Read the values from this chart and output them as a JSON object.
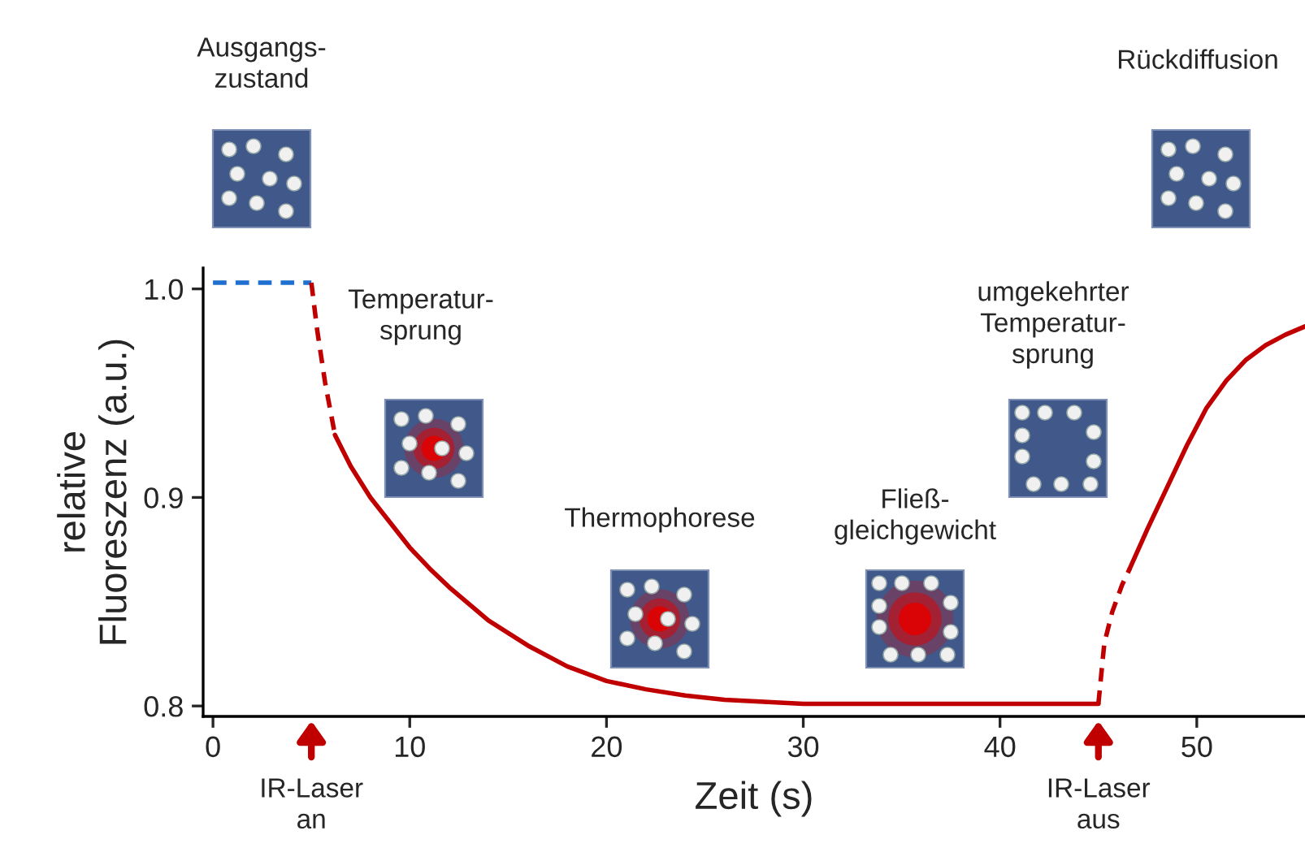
{
  "chart_data": {
    "type": "line",
    "xlabel": "Zeit (s)",
    "ylabel": "relative\nFluoreszenz (a.u.)",
    "xlim": [
      -0.5,
      55.5
    ],
    "ylim": [
      0.795,
      1.01
    ],
    "xticks": [
      0,
      10,
      20,
      30,
      40,
      50
    ],
    "yticks": [
      0.8,
      0.9,
      {
        "value": 1.0,
        "label": "1.0"
      }
    ],
    "grid": false,
    "legend": false,
    "series": [
      {
        "color": "#1f6fd0",
        "line_style": "dashed",
        "x": [
          0,
          5
        ],
        "values": [
          1.003,
          1.003
        ]
      },
      {
        "color": "#c00000",
        "line_style": "dashed",
        "x": [
          5,
          5.3,
          5.7,
          6.2
        ],
        "values": [
          1.003,
          0.98,
          0.955,
          0.93
        ]
      },
      {
        "color": "#c00000",
        "line_style": "solid",
        "x": [
          6.2,
          7,
          8,
          9,
          10,
          11,
          12,
          14,
          16,
          18,
          20,
          22,
          24,
          26,
          28,
          30,
          35,
          40,
          45
        ],
        "values": [
          0.93,
          0.915,
          0.9,
          0.888,
          0.876,
          0.866,
          0.857,
          0.841,
          0.829,
          0.819,
          0.812,
          0.808,
          0.805,
          0.803,
          0.802,
          0.801,
          0.801,
          0.801,
          0.801
        ]
      },
      {
        "color": "#c00000",
        "line_style": "dashed",
        "x": [
          45,
          45.3,
          45.7,
          46.2,
          46.6
        ],
        "values": [
          0.801,
          0.83,
          0.845,
          0.858,
          0.866
        ]
      },
      {
        "color": "#c00000",
        "line_style": "solid",
        "x": [
          46.6,
          47.5,
          48.5,
          49.5,
          50.5,
          51.5,
          52.5,
          53.5,
          54.5,
          55.5
        ],
        "values": [
          0.866,
          0.885,
          0.905,
          0.925,
          0.943,
          0.956,
          0.966,
          0.973,
          0.978,
          0.982
        ]
      }
    ],
    "annotations": [
      "Ausgangs-\nzustand",
      "Temperatur-\nsprung",
      "Thermophorese",
      "Fließ-\ngleichgewicht",
      "umgekehrter\nTemperatur-\nsprung",
      "Rückdiffusion",
      {
        "text": "IR-Laser\nan",
        "x": 5
      },
      {
        "text": "IR-Laser\naus",
        "x": 45
      }
    ]
  }
}
